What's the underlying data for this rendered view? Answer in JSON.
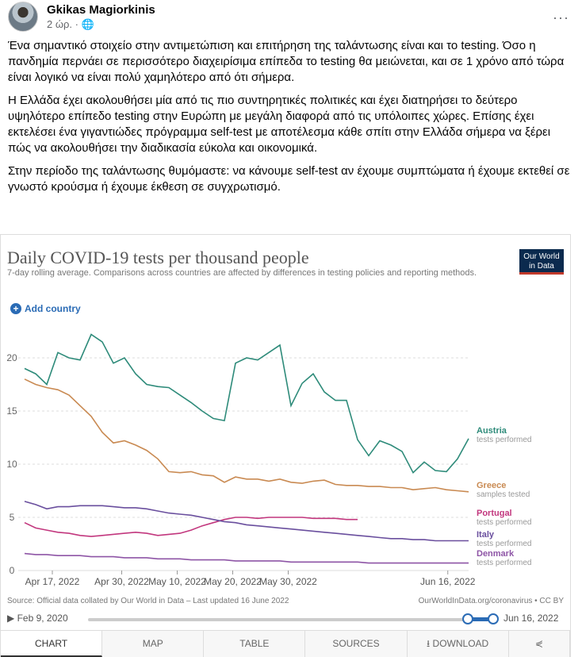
{
  "post": {
    "author": "Gkikas Magiorkinis",
    "time": "2 ώρ. ·",
    "globe_icon": "globe-icon",
    "more": "···",
    "paragraphs": [
      "Ένα σημαντικό στοιχείο στην αντιμετώπιση και επιτήρηση της ταλάντωσης είναι και το testing. Όσο η πανδημία περνάει σε περισσότερο διαχειρίσιμα επίπεδα το testing θα μειώνεται, και σε 1 χρόνο από τώρα είναι λογικό να είναι πολύ χαμηλότερο από ότι σήμερα.",
      "Η Ελλάδα έχει ακολουθήσει μία από τις πιο συντηρητικές πολιτικές και έχει διατηρήσει το δεύτερο υψηλότερο επίπεδο testing στην Ευρώπη με μεγάλη διαφορά από τις υπόλοιπες χώρες. Επίσης έχει εκτελέσει ένα γιγαντιώδες πρόγραμμα self-test με αποτέλεσμα κάθε σπίτι στην Ελλάδα σήμερα να ξέρει πώς να ακολουθήσει την διαδικασία εύκολα και οικονομικά.",
      "Στην περίοδο της ταλάντωσης θυμόμαστε: να κάνουμε self-test αν έχουμε συμπτώματα ή έχουμε εκτεθεί σε γνωστό κρούσμα ή έχουμε έκθεση σε συγχρωτισμό."
    ]
  },
  "chart_ui": {
    "logo": "Our World in Data",
    "add_country": "Add country",
    "source": "Source: Official data collated by Our World in Data – Last updated 16 June 2022",
    "url": "OurWorldInData.org/coronavirus • CC BY",
    "timeline_start": "Feb 9, 2020",
    "timeline_end": "Jun 16, 2022",
    "tabs": [
      "CHART",
      "MAP",
      "TABLE",
      "SOURCES",
      "⭳ DOWNLOAD",
      "⋞"
    ]
  },
  "chart_data": {
    "type": "line",
    "title": "Daily COVID-19 tests per thousand people",
    "subtitle": "7-day rolling average. Comparisons across countries are affected by differences in testing policies and reporting methods.",
    "x_start": "2022-04-13",
    "x_end": "2022-06-16",
    "x_ticks": [
      {
        "label": "Apr 17, 2022",
        "day": 4
      },
      {
        "label": "Apr 30, 2022",
        "day": 14
      },
      {
        "label": "May 10, 2022",
        "day": 22
      },
      {
        "label": "May 20, 2022",
        "day": 30
      },
      {
        "label": "May 30, 2022",
        "day": 38
      },
      {
        "label": "Jun 16, 2022",
        "day": 61
      }
    ],
    "y_ticks": [
      0,
      5,
      10,
      15,
      20
    ],
    "ylim": [
      0,
      22.5
    ],
    "xlim": [
      0,
      64
    ],
    "series": [
      {
        "name": "Austria",
        "sub": "tests performed",
        "color": "#2e8b7a",
        "values": [
          19,
          18.5,
          17.5,
          20.5,
          20,
          19.8,
          22.2,
          21.5,
          19.5,
          20,
          18.5,
          17.5,
          17.3,
          17.2,
          16.5,
          15.8,
          15,
          14.3,
          14.1,
          19.5,
          20,
          19.8,
          20.5,
          21.2,
          15.5,
          17.6,
          18.5,
          16.8,
          16,
          16,
          12.3,
          10.8,
          12.2,
          11.8,
          11.2,
          9.2,
          10.2,
          9.4,
          9.3,
          10.5,
          12.4
        ]
      },
      {
        "name": "Greece",
        "sub": "samples tested",
        "color": "#c98a52",
        "values": [
          18,
          17.5,
          17.2,
          17,
          16.5,
          15.5,
          14.5,
          13,
          12,
          12.2,
          11.8,
          11.3,
          10.5,
          9.3,
          9.2,
          9.3,
          9,
          8.9,
          8.3,
          8.8,
          8.6,
          8.6,
          8.4,
          8.6,
          8.3,
          8.2,
          8.4,
          8.5,
          8.1,
          8,
          8,
          7.9,
          7.9,
          7.8,
          7.8,
          7.6,
          7.7,
          7.8,
          7.6,
          7.5,
          7.4
        ]
      },
      {
        "name": "Portugal",
        "sub": "tests performed",
        "color": "#c2377e",
        "values": [
          4.5,
          4,
          3.8,
          3.6,
          3.5,
          3.3,
          3.2,
          3.3,
          3.4,
          3.5,
          3.6,
          3.5,
          3.3,
          3.4,
          3.5,
          3.8,
          4.2,
          4.5,
          4.8,
          5,
          5,
          4.9,
          5,
          5,
          5,
          5,
          4.9,
          4.9,
          4.9,
          4.8,
          4.8,
          null,
          null,
          null,
          null,
          null,
          null,
          null,
          null,
          null,
          null
        ]
      },
      {
        "name": "Italy",
        "sub": "tests performed",
        "color": "#6a4f9e",
        "values": [
          6.5,
          6.2,
          5.8,
          6,
          6,
          6.1,
          6.1,
          6.1,
          6,
          5.9,
          5.9,
          5.8,
          5.6,
          5.4,
          5.3,
          5.2,
          5,
          4.8,
          4.6,
          4.5,
          4.3,
          4.2,
          4.1,
          4,
          3.9,
          3.8,
          3.7,
          3.6,
          3.5,
          3.4,
          3.3,
          3.2,
          3.1,
          3,
          3,
          2.9,
          2.9,
          2.8,
          2.8,
          2.8,
          2.8
        ]
      },
      {
        "name": "Denmark",
        "sub": "tests performed",
        "color": "#8e55a6",
        "values": [
          1.6,
          1.5,
          1.5,
          1.4,
          1.4,
          1.4,
          1.3,
          1.3,
          1.3,
          1.2,
          1.2,
          1.2,
          1.1,
          1.1,
          1.1,
          1,
          1,
          1,
          1,
          0.9,
          0.9,
          0.9,
          0.9,
          0.9,
          0.8,
          0.8,
          0.8,
          0.8,
          0.8,
          0.8,
          0.8,
          0.7,
          0.7,
          0.7,
          0.7,
          0.7,
          0.7,
          0.7,
          0.7,
          0.7,
          0.7
        ]
      }
    ]
  }
}
